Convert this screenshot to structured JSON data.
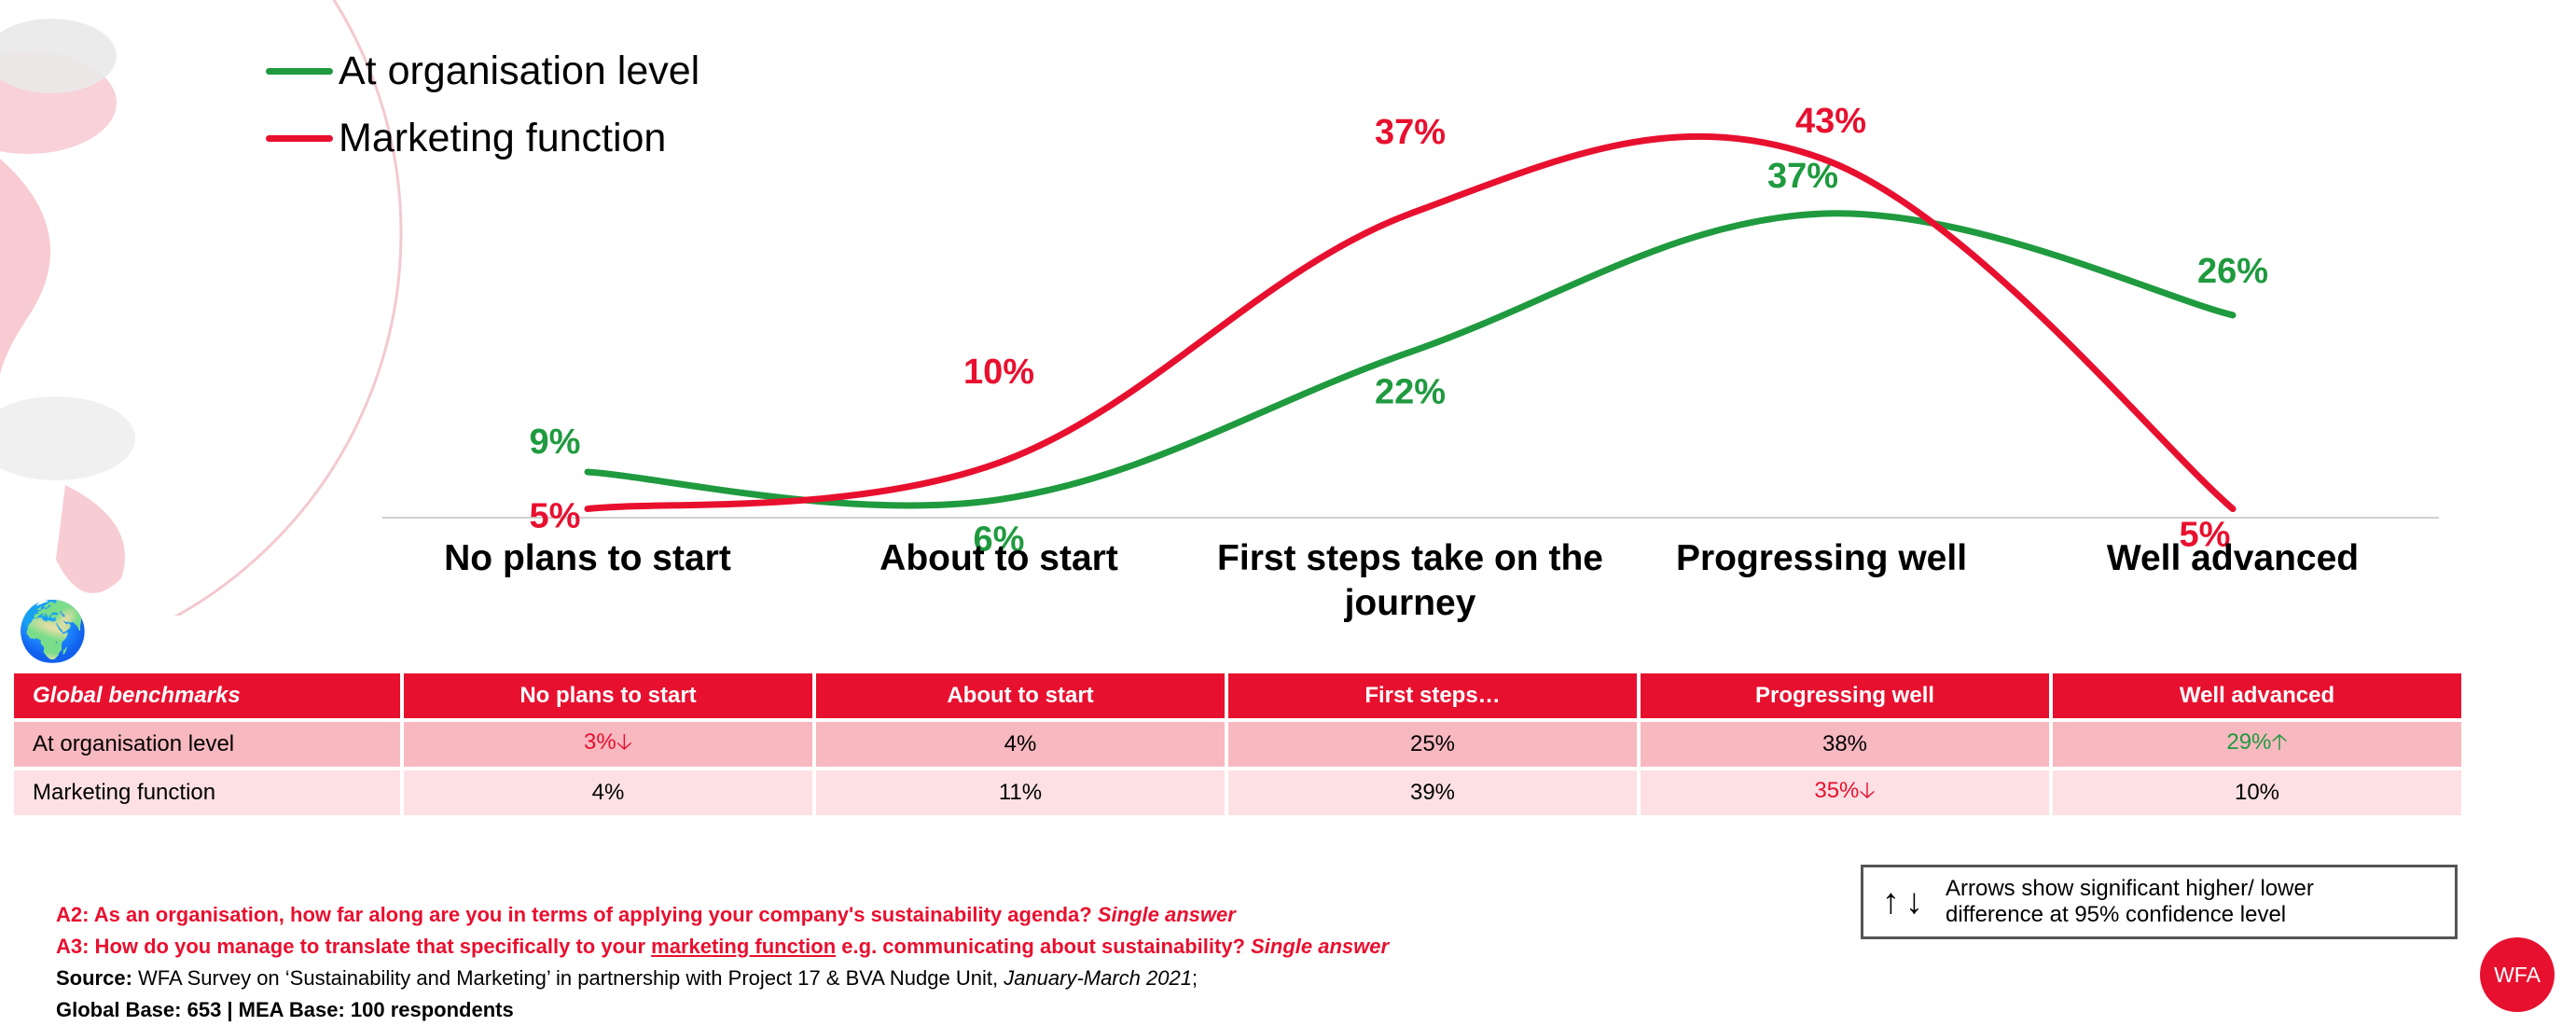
{
  "colors": {
    "organisation": "#1f9a3f",
    "marketing": "#e8102f",
    "header": "#e8102f",
    "row1": "#f8b8c0",
    "row2": "#fde0e4"
  },
  "legend": {
    "organisation": "At organisation level",
    "marketing": "Marketing function"
  },
  "chart_data": {
    "type": "line",
    "categories": [
      "No plans to start",
      "About to start",
      "First steps take on the journey",
      "Progressing well",
      "Well advanced"
    ],
    "series": [
      {
        "name": "At organisation level",
        "values": [
          9,
          6,
          22,
          37,
          26
        ],
        "labels": [
          "9%",
          "6%",
          "22%",
          "37%",
          "26%"
        ]
      },
      {
        "name": "Marketing function",
        "values": [
          5,
          10,
          37,
          43,
          5
        ],
        "labels": [
          "5%",
          "10%",
          "37%",
          "43%",
          "5%"
        ]
      }
    ],
    "title": "",
    "xlabel": "",
    "ylabel": "",
    "ylim": [
      0,
      45
    ],
    "grid": false,
    "legend_position": "top-left",
    "smooth": true
  },
  "icons": {
    "globe": "globe-icon",
    "logo_text": "WFA"
  },
  "benchmarks": {
    "header": [
      "Global benchmarks",
      "No plans to start",
      "About to start",
      "First steps…",
      "Progressing well",
      "Well advanced"
    ],
    "rows": [
      {
        "label": "At organisation level",
        "cells": [
          {
            "text": "3%",
            "arrow": "🡣",
            "dir": "down"
          },
          {
            "text": "4%"
          },
          {
            "text": "25%"
          },
          {
            "text": "38%"
          },
          {
            "text": "29%",
            "arrow": "🡡",
            "dir": "up"
          }
        ]
      },
      {
        "label": "Marketing function",
        "cells": [
          {
            "text": "4%"
          },
          {
            "text": "11%"
          },
          {
            "text": "39%"
          },
          {
            "text": "35%",
            "arrow": "🡣",
            "dir": "down"
          },
          {
            "text": "10%"
          }
        ]
      }
    ]
  },
  "arrow_note": {
    "arrows": "↑↓",
    "text": "Arrows show significant higher/ lower difference at 95% confidence level"
  },
  "notes": {
    "a2": "A2: As an organisation, how far along are you in terms of applying your company's sustainability agenda?",
    "a2_tail": "Single answer",
    "a3_pre": "A3: How do you manage to translate that specifically to your",
    "a3_link": "marketing function",
    "a3_post": "e.g. communicating about sustainability?",
    "a3_tail": "Single answer",
    "source_label": "Source:",
    "source_text": "WFA Survey on ‘Sustainability and Marketing’ in partnership with Project 17 & BVA Nudge Unit,",
    "source_date": "January-March 2021",
    "source_end": ";",
    "base": "Global Base: 653 | MEA Base: 100 respondents"
  }
}
